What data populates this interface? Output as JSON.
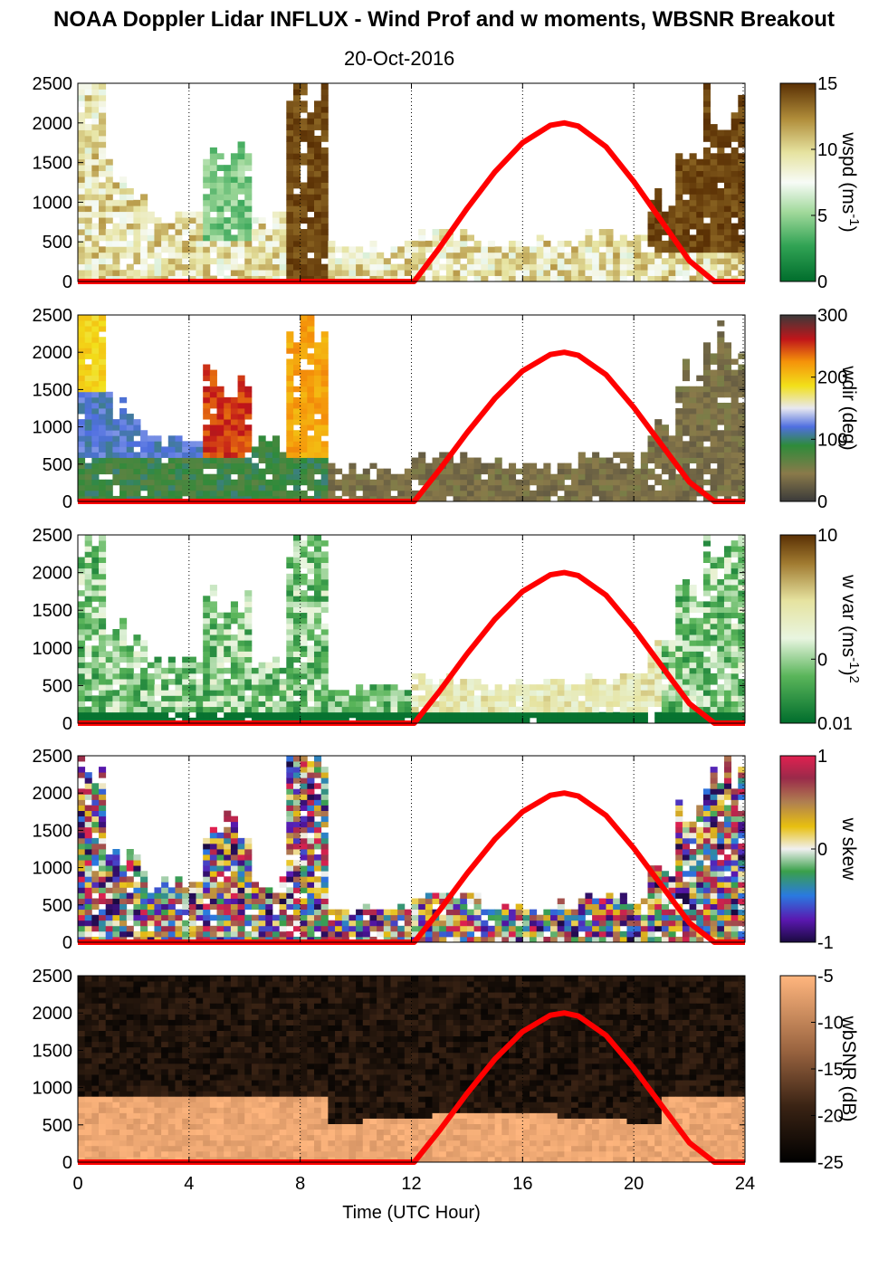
{
  "title": "NOAA Doppler Lidar INFLUX - Wind Prof and w moments, WBSNR Breakout",
  "subtitle": "20-Oct-2016",
  "xlabel": "Time (UTC Hour)",
  "xticks": [
    "0",
    "4",
    "8",
    "12",
    "16",
    "20",
    "24"
  ],
  "yticks": [
    "0",
    "500",
    "1000",
    "1500",
    "2000",
    "2500"
  ],
  "colors": {
    "sun_curve": "#ff0000",
    "grid": "#000000"
  },
  "chart_data": [
    {
      "type": "heatmap",
      "panel": "wspd",
      "colorbar_label": "wspd (ms-1)",
      "colorbar_label_text": "wspd (ms",
      "colorbar_label_sup": "-1",
      "colorbar_label_tail": ")",
      "colorbar_ticks": [
        "15",
        "10",
        "5",
        "0"
      ],
      "clim": [
        0,
        15
      ],
      "xlim": [
        0,
        24
      ],
      "ylim": [
        0,
        2500
      ],
      "ylabel": "",
      "grid": "vertical dotted at 4,8,12,16,20,24",
      "colormap": "green-white-brown",
      "description_values": "mostly 3-8 below 800 m; >13 above 500 m near 8-9 h and 20-24 h"
    },
    {
      "type": "heatmap",
      "panel": "wdir",
      "colorbar_label": "wdir (deg)",
      "colorbar_ticks": [
        "300",
        "200",
        "100",
        "0"
      ],
      "clim": [
        0,
        360
      ],
      "xlim": [
        0,
        24
      ],
      "ylim": [
        0,
        2500
      ],
      "colormap": "circular multicolour"
    },
    {
      "type": "heatmap",
      "panel": "w var",
      "colorbar_label": "w var (ms-1)2",
      "colorbar_label_text": "w var (ms",
      "colorbar_label_sup": "-1",
      "colorbar_label_tail": ")",
      "colorbar_label_sup2": "2",
      "colorbar_ticks": [
        "10",
        "0",
        "0.01"
      ],
      "clim": [
        0.01,
        10
      ],
      "scale": "log",
      "xlim": [
        0,
        24
      ],
      "ylim": [
        0,
        2500
      ],
      "colormap": "green-white-brown"
    },
    {
      "type": "heatmap",
      "panel": "w skew",
      "colorbar_label": "w skew",
      "colorbar_ticks": [
        "1",
        "0",
        "-1"
      ],
      "clim": [
        -1,
        1
      ],
      "xlim": [
        0,
        24
      ],
      "ylim": [
        0,
        2500
      ],
      "colormap": "diverging multicolour"
    },
    {
      "type": "heatmap",
      "panel": "wbSNR",
      "colorbar_label": "wbSNR (dB)",
      "colorbar_ticks": [
        "-5",
        "-10",
        "-15",
        "-20",
        "-25"
      ],
      "clim": [
        -25,
        -5
      ],
      "xlim": [
        0,
        24
      ],
      "ylim": [
        0,
        2500
      ],
      "colormap": "copper"
    }
  ],
  "sun_elevation_overlay": {
    "type": "line",
    "x": [
      0,
      12.1,
      13,
      14,
      15,
      16,
      17,
      17.5,
      18,
      19,
      20,
      21,
      22,
      22.9,
      24
    ],
    "y": [
      0,
      0,
      420,
      920,
      1380,
      1750,
      1970,
      2000,
      1960,
      1700,
      1260,
      760,
      260,
      0,
      0
    ]
  }
}
